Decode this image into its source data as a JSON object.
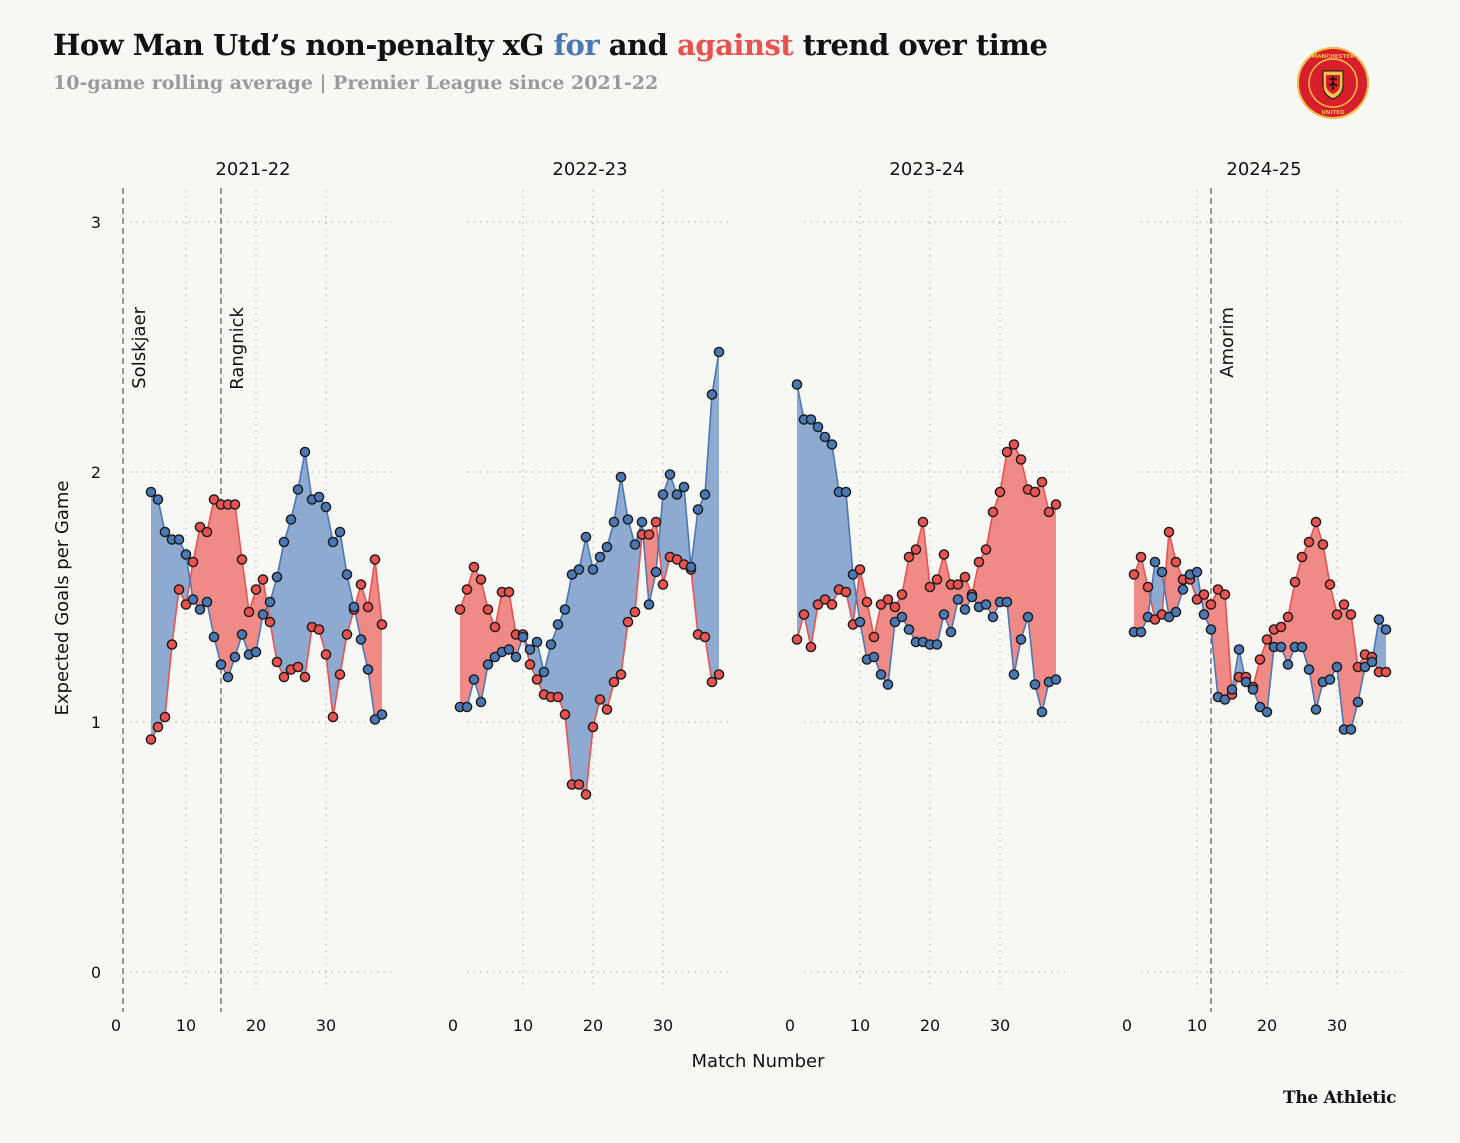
{
  "title": {
    "part1": "How Man Utd’s non-penalty xG ",
    "for_word": "for",
    "part2": " and ",
    "against_word": "against",
    "part3": " trend over time"
  },
  "subtitle": "10-game rolling average | Premier League since 2021-22",
  "brand": "The Athletic",
  "logo": {
    "top_text": "MANCHESTER",
    "bottom_text": "UNITED"
  },
  "colors": {
    "for": "#4a78b5",
    "against": "#e8524f",
    "for_fill": "#8eaad1",
    "against_fill": "#f08a86"
  },
  "chart_data": {
    "type": "line",
    "xlabel": "Match Number",
    "ylabel": "Expected Goals per Game",
    "ylim": [
      0,
      3
    ],
    "yticks": [
      0,
      1,
      2,
      3
    ],
    "xticks": [
      0,
      10,
      20,
      30
    ],
    "xlim": [
      0,
      38
    ],
    "grid": true,
    "panels": [
      {
        "season": "2021-22",
        "x_start": 5,
        "for": [
          1.92,
          1.89,
          1.76,
          1.73,
          1.73,
          1.67,
          1.49,
          1.45,
          1.48,
          1.34,
          1.23,
          1.18,
          1.26,
          1.35,
          1.27,
          1.28,
          1.43,
          1.48,
          1.58,
          1.72,
          1.81,
          1.93,
          2.08,
          1.89,
          1.9,
          1.86,
          1.72,
          1.76,
          1.59,
          1.46,
          1.33,
          1.21,
          1.01,
          1.03
        ],
        "against": [
          0.93,
          0.98,
          1.02,
          1.31,
          1.53,
          1.47,
          1.64,
          1.78,
          1.76,
          1.89,
          1.87,
          1.87,
          1.87,
          1.65,
          1.44,
          1.53,
          1.57,
          1.4,
          1.24,
          1.18,
          1.21,
          1.22,
          1.18,
          1.38,
          1.37,
          1.27,
          1.02,
          1.19,
          1.35,
          1.45,
          1.55,
          1.46,
          1.65,
          1.39
        ],
        "managers": [
          {
            "name": "Solskjaer",
            "x": 1
          },
          {
            "name": "Rangnick",
            "x": 15
          }
        ]
      },
      {
        "season": "2022-23",
        "x_start": 1,
        "for": [
          1.06,
          1.06,
          1.17,
          1.08,
          1.23,
          1.26,
          1.28,
          1.29,
          1.26,
          1.34,
          1.29,
          1.32,
          1.2,
          1.31,
          1.39,
          1.45,
          1.59,
          1.61,
          1.74,
          1.61,
          1.66,
          1.7,
          1.8,
          1.98,
          1.81,
          1.71,
          1.8,
          1.47,
          1.6,
          1.91,
          1.99,
          1.91,
          1.94,
          1.62,
          1.85,
          1.91,
          2.31,
          2.48
        ],
        "against": [
          1.45,
          1.53,
          1.62,
          1.57,
          1.45,
          1.38,
          1.52,
          1.52,
          1.35,
          1.35,
          1.23,
          1.17,
          1.11,
          1.1,
          1.1,
          1.03,
          0.75,
          0.75,
          0.71,
          0.98,
          1.09,
          1.05,
          1.16,
          1.19,
          1.4,
          1.44,
          1.75,
          1.75,
          1.8,
          1.55,
          1.66,
          1.65,
          1.63,
          1.61,
          1.35,
          1.34,
          1.16,
          1.19
        ]
      },
      {
        "season": "2023-24",
        "x_start": 1,
        "for": [
          2.35,
          2.21,
          2.21,
          2.18,
          2.14,
          2.11,
          1.92,
          1.92,
          1.59,
          1.4,
          1.25,
          1.26,
          1.19,
          1.15,
          1.4,
          1.42,
          1.37,
          1.32,
          1.32,
          1.31,
          1.31,
          1.43,
          1.36,
          1.49,
          1.45,
          1.5,
          1.46,
          1.47,
          1.42,
          1.48,
          1.48,
          1.19,
          1.33,
          1.42,
          1.15,
          1.04,
          1.16,
          1.17
        ],
        "against": [
          1.33,
          1.43,
          1.3,
          1.47,
          1.49,
          1.47,
          1.53,
          1.52,
          1.39,
          1.61,
          1.48,
          1.34,
          1.47,
          1.49,
          1.46,
          1.51,
          1.66,
          1.69,
          1.8,
          1.54,
          1.57,
          1.67,
          1.55,
          1.55,
          1.58,
          1.51,
          1.64,
          1.69,
          1.84,
          1.92,
          2.08,
          2.11,
          2.05,
          1.93,
          1.92,
          1.96,
          1.84,
          1.87
        ]
      },
      {
        "season": "2024-25",
        "x_start": 1,
        "for": [
          1.36,
          1.36,
          1.42,
          1.64,
          1.6,
          1.42,
          1.44,
          1.53,
          1.59,
          1.6,
          1.43,
          1.37,
          1.1,
          1.09,
          1.13,
          1.29,
          1.16,
          1.13,
          1.06,
          1.04,
          1.3,
          1.3,
          1.23,
          1.3,
          1.3,
          1.21,
          1.05,
          1.16,
          1.17,
          1.22,
          0.97,
          0.97,
          1.08,
          1.22,
          1.24,
          1.41,
          1.37
        ],
        "against": [
          1.59,
          1.66,
          1.54,
          1.41,
          1.43,
          1.76,
          1.64,
          1.57,
          1.57,
          1.49,
          1.51,
          1.47,
          1.53,
          1.51,
          1.11,
          1.18,
          1.18,
          1.14,
          1.25,
          1.33,
          1.37,
          1.38,
          1.42,
          1.56,
          1.66,
          1.72,
          1.8,
          1.71,
          1.55,
          1.43,
          1.47,
          1.43,
          1.22,
          1.27,
          1.26,
          1.2,
          1.2
        ],
        "managers": [
          {
            "name": "Amorim",
            "x": 12
          }
        ]
      }
    ]
  }
}
